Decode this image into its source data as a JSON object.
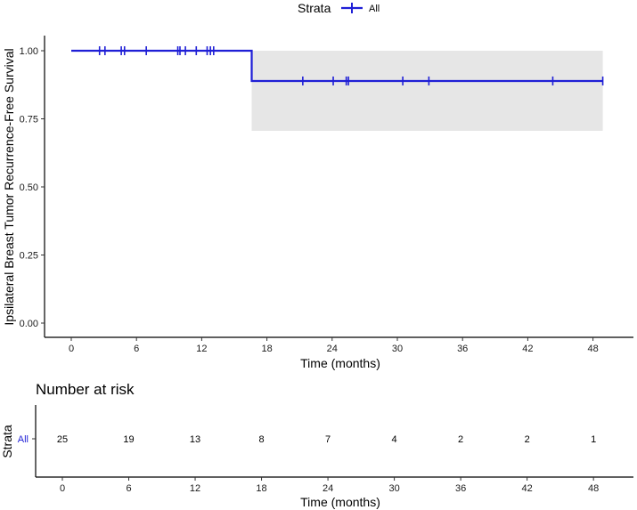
{
  "legend": {
    "title": "Strata",
    "entry": "All",
    "color": "#1f1fd6"
  },
  "chart_data": [
    {
      "type": "line",
      "subtype": "kaplan-meier step",
      "title": "",
      "xlabel": "Time (months)",
      "ylabel": "Ipsilateral Breast Tumor Recurrence-Free Survival",
      "xlim": [
        -1.5,
        50
      ],
      "ylim": [
        0,
        1
      ],
      "x_ticks": [
        "0",
        "6",
        "12",
        "18",
        "24",
        "30",
        "36",
        "42",
        "48"
      ],
      "y_ticks": [
        "0.00",
        "0.25",
        "0.50",
        "0.75",
        "1.00"
      ],
      "grid": false,
      "legend_position": "top",
      "series": [
        {
          "name": "All",
          "color": "#1f1fd6",
          "step_x": [
            0,
            16.6,
            16.6,
            48.9
          ],
          "step_y": [
            1.0,
            1.0,
            0.889,
            0.889
          ],
          "censor_points": [
            {
              "x": 2.6,
              "y": 1.0
            },
            {
              "x": 3.1,
              "y": 1.0
            },
            {
              "x": 4.6,
              "y": 1.0
            },
            {
              "x": 4.9,
              "y": 1.0
            },
            {
              "x": 6.9,
              "y": 1.0
            },
            {
              "x": 9.8,
              "y": 1.0
            },
            {
              "x": 10.0,
              "y": 1.0
            },
            {
              "x": 10.5,
              "y": 1.0
            },
            {
              "x": 11.5,
              "y": 1.0
            },
            {
              "x": 12.5,
              "y": 1.0
            },
            {
              "x": 12.8,
              "y": 1.0
            },
            {
              "x": 13.1,
              "y": 1.0
            },
            {
              "x": 21.3,
              "y": 0.889
            },
            {
              "x": 24.1,
              "y": 0.889
            },
            {
              "x": 25.3,
              "y": 0.889
            },
            {
              "x": 25.5,
              "y": 0.889
            },
            {
              "x": 30.5,
              "y": 0.889
            },
            {
              "x": 32.9,
              "y": 0.889
            },
            {
              "x": 44.3,
              "y": 0.889
            },
            {
              "x": 48.9,
              "y": 0.889
            }
          ],
          "ci_band": {
            "x": [
              16.6,
              48.9
            ],
            "lower": 0.706,
            "upper": 1.0,
            "color": "#e6e6e6"
          }
        }
      ]
    },
    {
      "type": "table",
      "title": "Number at risk",
      "xlabel": "Time (months)",
      "ylabel": "Strata",
      "row_label": "All",
      "x_ticks": [
        "0",
        "6",
        "12",
        "18",
        "24",
        "30",
        "36",
        "42",
        "48"
      ],
      "times": [
        0,
        6,
        12,
        18,
        24,
        30,
        36,
        42,
        48
      ],
      "values": [
        "25",
        "19",
        "13",
        "8",
        "7",
        "4",
        "2",
        "2",
        "1"
      ]
    }
  ]
}
